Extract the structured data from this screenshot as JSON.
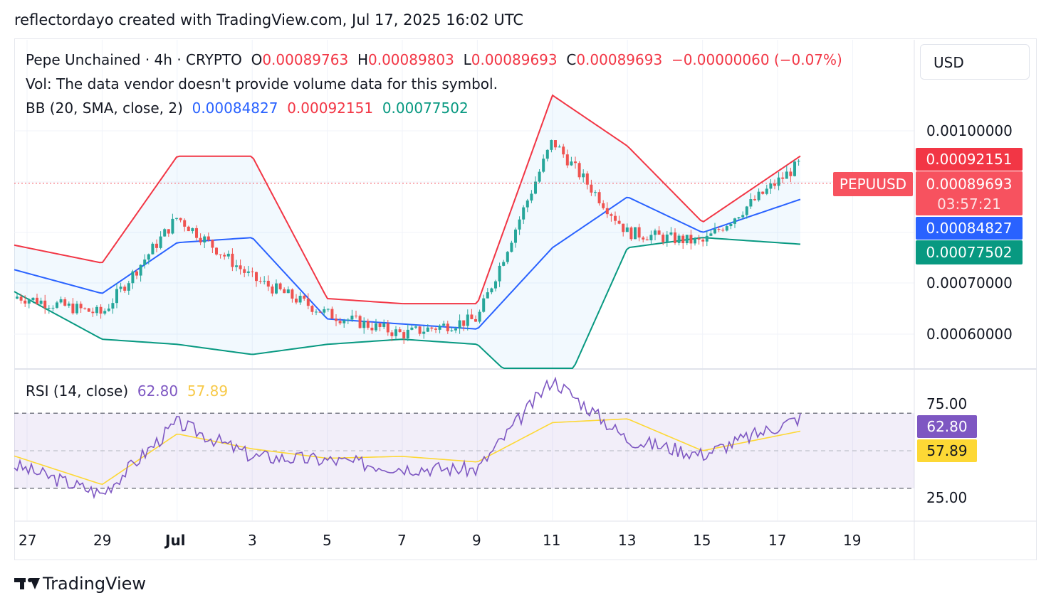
{
  "header": {
    "attribution": "reflectordayo created with TradingView.com, Jul 17, 2025 16:02 UTC"
  },
  "currency_selector": {
    "label": "USD"
  },
  "legend": {
    "symbol_line": "Pepe Unchained · 4h · CRYPTO",
    "o_label": "O",
    "o_value": "0.00089763",
    "h_label": "H",
    "h_value": "0.00089803",
    "l_label": "L",
    "l_value": "0.00089693",
    "c_label": "C",
    "c_value": "0.00089693",
    "change": "−0.00000060 (−0.07%)",
    "vol_line": "Vol: The data vendor doesn't provide volume data for this symbol.",
    "bb_label": "BB (20, SMA, close, 2)",
    "bb_basis": "0.00084827",
    "bb_upper": "0.00092151",
    "bb_lower": "0.00077502",
    "rsi_label": "RSI (14, close)",
    "rsi_value": "62.80",
    "rsi_ma_value": "57.89"
  },
  "price_axis": {
    "ticks": [
      "0.00100000",
      "0.00070000",
      "0.00060000"
    ],
    "tags": {
      "upper": "0.00092151",
      "symbol": "PEPUUSD",
      "last": "0.00089693",
      "countdown": "03:57:21",
      "basis": "0.00084827",
      "lower": "0.00077502"
    }
  },
  "rsi_axis": {
    "ticks": [
      "75.00",
      "25.00"
    ],
    "tags": {
      "rsi": "62.80",
      "rsi_ma": "57.89"
    }
  },
  "time_axis": {
    "ticks": [
      "27",
      "29",
      "Jul",
      "3",
      "5",
      "7",
      "9",
      "11",
      "13",
      "15",
      "17",
      "19"
    ]
  },
  "colors": {
    "up": "#26a69a",
    "down": "#ef5350",
    "bb_upper": "#f23645",
    "bb_basis": "#2962ff",
    "bb_lower": "#089981",
    "rsi": "#7e57c2",
    "rsi_ma": "#fdd835",
    "last_price": "#f7525f"
  },
  "footer": {
    "logo_text": "TradingView"
  },
  "chart_data": [
    {
      "type": "candlestick",
      "symbol": "PEPUUSD",
      "timeframe": "4h",
      "x": [
        "Jun 27",
        "Jun 29",
        "Jul 1",
        "Jul 3",
        "Jul 5",
        "Jul 7",
        "Jul 9",
        "Jul 11",
        "Jul 13",
        "Jul 15",
        "Jul 17"
      ],
      "close_approx": [
        0.00067,
        0.00064,
        0.00083,
        0.00071,
        0.00064,
        0.0006,
        0.00063,
        0.00098,
        0.0008,
        0.00078,
        0.0009
      ],
      "bb_upper_approx": [
        0.00077,
        0.00074,
        0.00095,
        0.00095,
        0.00067,
        0.00066,
        0.00066,
        0.00107,
        0.00097,
        0.00082,
        0.00092
      ],
      "bb_basis_approx": [
        0.00072,
        0.00068,
        0.00078,
        0.00079,
        0.00063,
        0.00062,
        0.00061,
        0.00077,
        0.00087,
        0.0008,
        0.00085
      ],
      "bb_lower_approx": [
        0.00067,
        0.00059,
        0.00058,
        0.00056,
        0.00058,
        0.00059,
        0.00058,
        0.00044,
        0.00077,
        0.00079,
        0.00078
      ],
      "last_price": 0.00089693,
      "y_ticks": [
        0.001,
        0.0007,
        0.0006
      ]
    },
    {
      "type": "line",
      "title": "RSI (14, close)",
      "x": [
        "Jun 27",
        "Jun 29",
        "Jul 1",
        "Jul 3",
        "Jul 5",
        "Jul 7",
        "Jul 9",
        "Jul 11",
        "Jul 13",
        "Jul 15",
        "Jul 17"
      ],
      "series": [
        {
          "name": "RSI",
          "values": [
            40,
            27,
            65,
            47,
            45,
            41,
            40,
            88,
            56,
            48,
            63
          ]
        },
        {
          "name": "RSI MA",
          "values": [
            45,
            32,
            59,
            51,
            46,
            47,
            44,
            65,
            67,
            50,
            58
          ]
        }
      ],
      "band": [
        30,
        70
      ],
      "y_ticks": [
        75,
        25
      ],
      "last_rsi": 62.8,
      "last_ma": 57.89
    }
  ]
}
